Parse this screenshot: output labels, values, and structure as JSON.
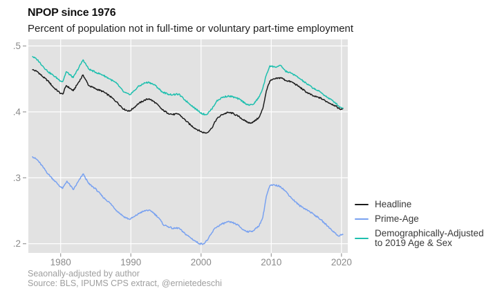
{
  "header": {
    "title": "NPOP since 1976",
    "subtitle": "Percent of population not in full-time or voluntary part-time employment"
  },
  "footer": {
    "note": "Seaonally-adjusted by author",
    "source": "Source: BLS, IPUMS CPS extract, @ernietedeschi"
  },
  "colors": {
    "plot_background": "#e2e2e2",
    "gridline": "#ffffff",
    "tick": "#9a9a9a",
    "tick_label": "#8a8a8a",
    "headline": "#1b1b1b",
    "prime_age": "#78a1f0",
    "demo_adjusted": "#1dbfae"
  },
  "chart_data": {
    "type": "line",
    "title": "NPOP since 1976",
    "subtitle": "Percent of population not in full-time or voluntary part-time employment",
    "xlim": [
      1975.4,
      2020.9
    ],
    "ylim": [
      0.186,
      0.51
    ],
    "xticks": [
      1980,
      1990,
      2000,
      2010,
      2020
    ],
    "xtick_labels": [
      "1980",
      "1990",
      "2000",
      "2010",
      "2020"
    ],
    "yticks": [
      0.2,
      0.3,
      0.4,
      0.5
    ],
    "ytick_labels": [
      ".2",
      ".3",
      ".4",
      ".5"
    ],
    "grid": true,
    "legend_position": "right",
    "legend": {
      "entries": [
        {
          "label": "Headline"
        },
        {
          "label": "Prime-Age"
        },
        {
          "label": "Demographically-Adjusted\nto 2019 Age & Sex"
        }
      ]
    },
    "series": [
      {
        "name": "Headline",
        "color": "#1b1b1b",
        "x": [
          1976,
          1976.7,
          1977.5,
          1978.2,
          1979,
          1980,
          1980.3,
          1980.8,
          1981.8,
          1983.2,
          1984,
          1985,
          1986,
          1987,
          1988,
          1989,
          1989.8,
          1990.5,
          1991,
          1992,
          1992.6,
          1993.5,
          1994.5,
          1995.3,
          1996,
          1996.8,
          1997.5,
          1998.5,
          1999.3,
          2000.2,
          2000.8,
          2001.5,
          2002.2,
          2003,
          2003.8,
          2004.5,
          2005.5,
          2006.3,
          2006.9,
          2007.5,
          2008.3,
          2008.8,
          2009.3,
          2009.8,
          2010.5,
          2011.4,
          2012,
          2013,
          2014,
          2015,
          2016,
          2017,
          2018,
          2019,
          2019.8,
          2020.2
        ],
        "y": [
          0.464,
          0.461,
          0.453,
          0.447,
          0.437,
          0.428,
          0.427,
          0.44,
          0.432,
          0.456,
          0.44,
          0.435,
          0.431,
          0.424,
          0.415,
          0.404,
          0.401,
          0.407,
          0.412,
          0.418,
          0.42,
          0.414,
          0.403,
          0.398,
          0.396,
          0.397,
          0.39,
          0.38,
          0.374,
          0.369,
          0.368,
          0.375,
          0.389,
          0.396,
          0.399,
          0.398,
          0.392,
          0.386,
          0.383,
          0.385,
          0.392,
          0.405,
          0.432,
          0.447,
          0.45,
          0.452,
          0.448,
          0.445,
          0.438,
          0.43,
          0.424,
          0.421,
          0.415,
          0.41,
          0.404,
          0.405
        ]
      },
      {
        "name": "Prime-Age",
        "color": "#78a1f0",
        "x": [
          1976,
          1976.7,
          1977.5,
          1978.2,
          1979,
          1980,
          1980.3,
          1980.9,
          1981.8,
          1983.2,
          1984,
          1985,
          1986,
          1987,
          1988,
          1989,
          1989.8,
          1990.5,
          1991.3,
          1992.3,
          1993,
          1994,
          1994.6,
          1995.3,
          1996,
          1996.8,
          1997.5,
          1998.5,
          1999.3,
          1999.8,
          2000.4,
          2001,
          2002,
          2003,
          2003.8,
          2004.5,
          2005.3,
          2006,
          2006.8,
          2007.5,
          2008.3,
          2008.8,
          2009.3,
          2009.8,
          2010.5,
          2011.3,
          2012,
          2013,
          2014,
          2015,
          2016,
          2017,
          2018,
          2019,
          2019.5,
          2020.2
        ],
        "y": [
          0.332,
          0.327,
          0.316,
          0.306,
          0.297,
          0.286,
          0.284,
          0.295,
          0.282,
          0.306,
          0.291,
          0.283,
          0.271,
          0.262,
          0.25,
          0.241,
          0.237,
          0.241,
          0.247,
          0.251,
          0.249,
          0.239,
          0.229,
          0.226,
          0.223,
          0.224,
          0.217,
          0.209,
          0.203,
          0.2,
          0.2,
          0.207,
          0.224,
          0.23,
          0.233,
          0.232,
          0.228,
          0.221,
          0.218,
          0.22,
          0.228,
          0.24,
          0.272,
          0.288,
          0.289,
          0.287,
          0.28,
          0.268,
          0.258,
          0.252,
          0.245,
          0.237,
          0.227,
          0.217,
          0.212,
          0.214
        ]
      },
      {
        "name": "Demographically-Adjusted to 2019 Age & Sex",
        "color": "#1dbfae",
        "x": [
          1976,
          1976.7,
          1977.5,
          1978.2,
          1979,
          1980,
          1980.3,
          1980.8,
          1981.8,
          1983.2,
          1984,
          1985,
          1986,
          1987,
          1988,
          1989,
          1989.8,
          1990.5,
          1991,
          1992,
          1992.6,
          1993.5,
          1994.5,
          1995.3,
          1996,
          1996.8,
          1997.5,
          1998.5,
          1999.3,
          2000.2,
          2000.8,
          2001.5,
          2002.2,
          2003,
          2003.8,
          2004.5,
          2005.5,
          2006.3,
          2006.9,
          2007.5,
          2008.3,
          2008.8,
          2009.3,
          2009.8,
          2010.5,
          2011.4,
          2012,
          2013,
          2014,
          2015,
          2016,
          2017,
          2018,
          2019,
          2019.8,
          2020.2
        ],
        "y": [
          0.484,
          0.479,
          0.469,
          0.461,
          0.455,
          0.447,
          0.446,
          0.461,
          0.452,
          0.479,
          0.465,
          0.46,
          0.456,
          0.45,
          0.443,
          0.43,
          0.426,
          0.432,
          0.438,
          0.444,
          0.445,
          0.44,
          0.43,
          0.427,
          0.426,
          0.427,
          0.42,
          0.411,
          0.404,
          0.397,
          0.396,
          0.404,
          0.416,
          0.422,
          0.424,
          0.423,
          0.419,
          0.413,
          0.41,
          0.412,
          0.423,
          0.436,
          0.456,
          0.47,
          0.468,
          0.47,
          0.462,
          0.458,
          0.451,
          0.443,
          0.436,
          0.43,
          0.422,
          0.415,
          0.407,
          0.406
        ]
      }
    ]
  }
}
